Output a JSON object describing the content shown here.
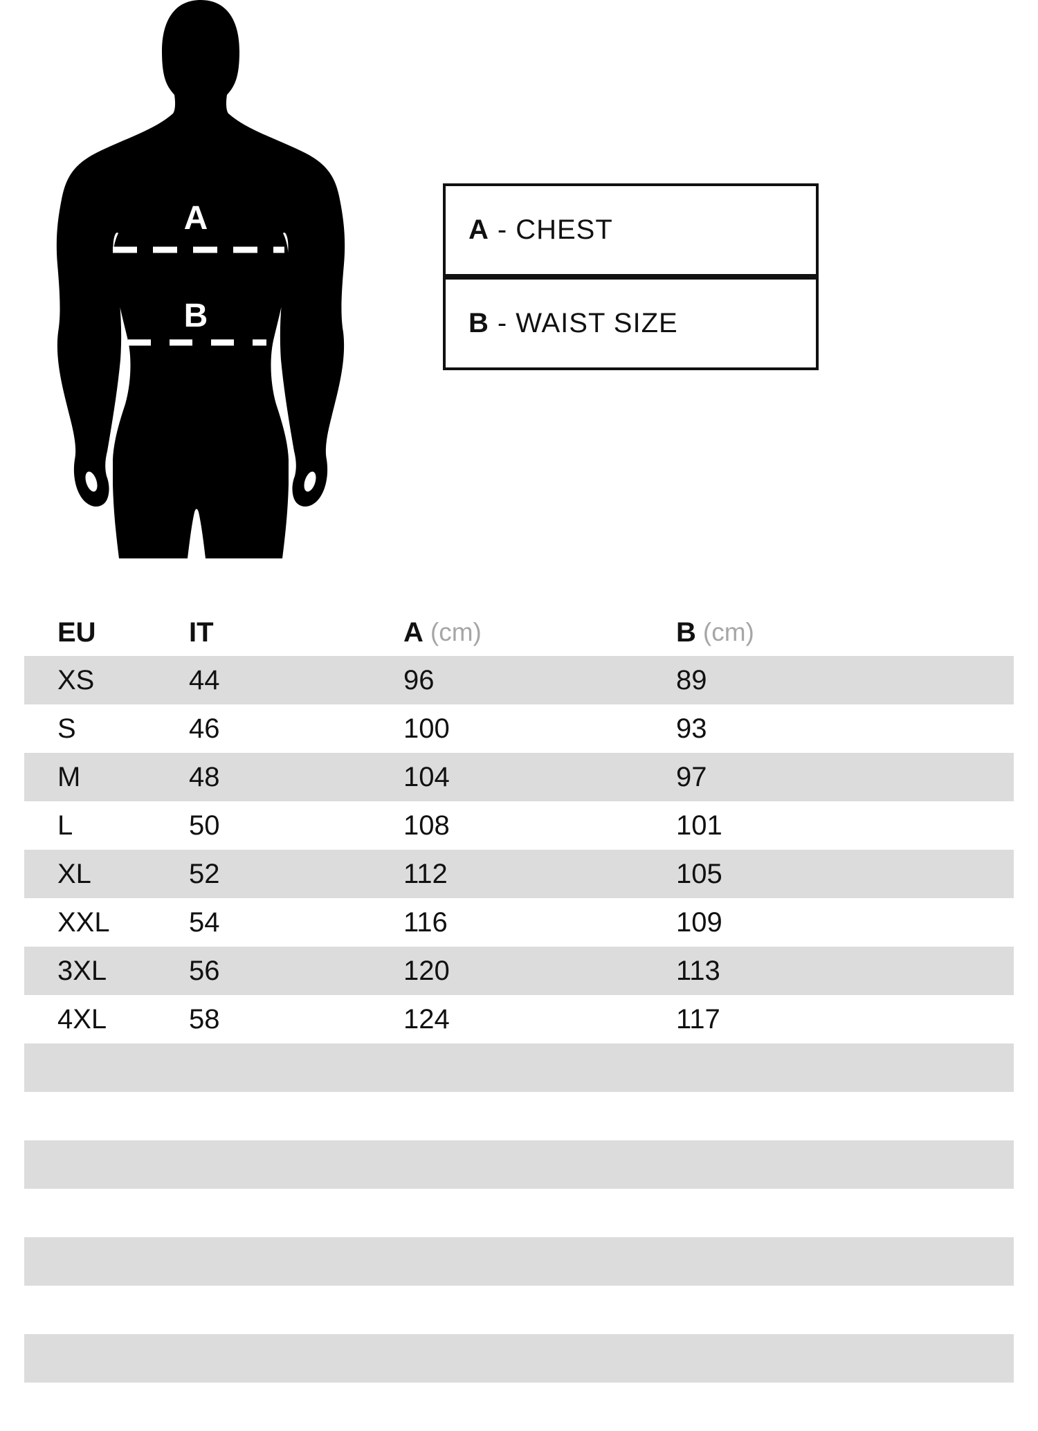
{
  "figure": {
    "chest_marker": "A",
    "waist_marker": "B"
  },
  "legend": [
    {
      "key": "A",
      "sep": "-",
      "label": "CHEST"
    },
    {
      "key": "B",
      "sep": "-",
      "label": "WAIST SIZE"
    }
  ],
  "table": {
    "headers": [
      {
        "label": "EU",
        "unit": ""
      },
      {
        "label": "IT",
        "unit": ""
      },
      {
        "label": "A",
        "unit": "(cm)"
      },
      {
        "label": "B",
        "unit": "(cm)"
      }
    ],
    "rows": [
      [
        "XS",
        "44",
        "96",
        "89"
      ],
      [
        "S",
        "46",
        "100",
        "93"
      ],
      [
        "M",
        "48",
        "104",
        "97"
      ],
      [
        "L",
        "50",
        "108",
        "101"
      ],
      [
        "XL",
        "52",
        "112",
        "105"
      ],
      [
        "XXL",
        "54",
        "116",
        "109"
      ],
      [
        "3XL",
        "56",
        "120",
        "113"
      ],
      [
        "4XL",
        "58",
        "124",
        "117"
      ]
    ],
    "empty_rows": 8
  },
  "colors": {
    "stripe": "#dcdcdc",
    "unit_text": "#a6a6a6",
    "silhouette": "#000000",
    "marker_text": "#ffffff"
  }
}
